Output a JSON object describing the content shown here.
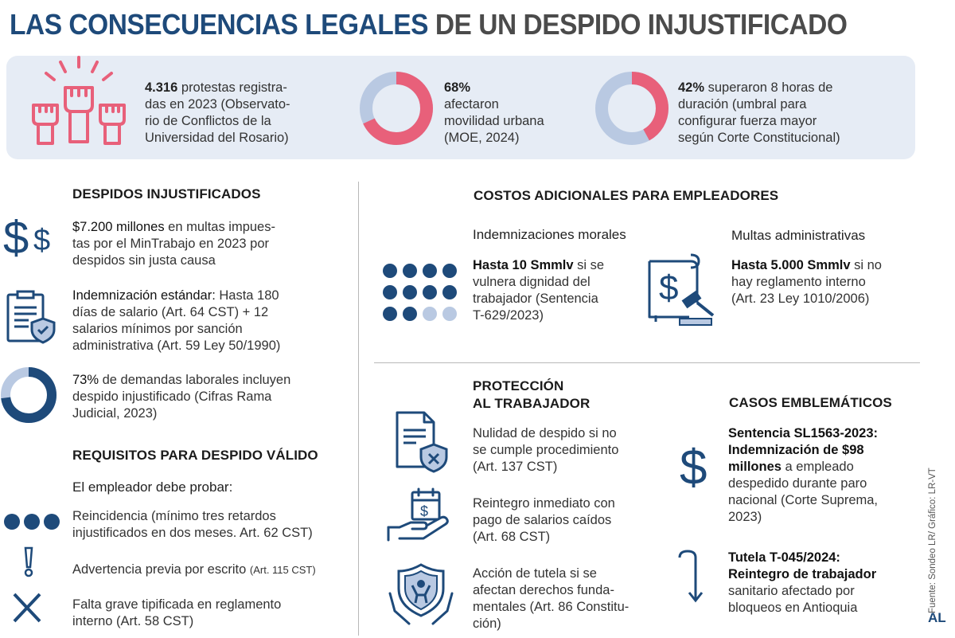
{
  "title": {
    "part_a": "LAS CONSECUENCIAS LEGALES",
    "part_b": "DE UN DESPIDO INJUSTIFICADO"
  },
  "colors": {
    "navy": "#1e4a7a",
    "red": "#e8607a",
    "light_blue": "#b9c9e2",
    "panel": "#e6ecf5"
  },
  "top_stats": [
    {
      "icon": "raised-fists-icon",
      "bold": "4.316",
      "lines": [
        "protestas registra-",
        "das en 2023 (Observato-",
        "rio de Conflictos de la",
        "Universidad del Rosario)"
      ]
    },
    {
      "icon": "donut-chart",
      "percent": 68,
      "bold": "68%",
      "lines": [
        "afectaron",
        "movilidad urbana",
        "(MOE, 2024)"
      ]
    },
    {
      "icon": "donut-chart",
      "percent": 42,
      "bold": "42%",
      "first_line_rest": "superaron 8 horas de",
      "lines": [
        "duración (umbral para",
        "configurar fuerza mayor",
        "según Corte Constitucional)"
      ]
    }
  ],
  "left": {
    "header": "DESPIDOS INJUSTIFICADOS",
    "item1": {
      "icon": "dollar-signs-icon",
      "bold": "$7.200 millones",
      "rest": "en multas impues-",
      "lines": [
        "tas por el MinTrabajo en 2023 por",
        "despidos sin justa causa"
      ]
    },
    "item2": {
      "icon": "clipboard-shield-icon",
      "bold": "Indemnización estándar:",
      "rest": "Hasta 180",
      "lines": [
        "días de salario (Art. 64 CST) + 12",
        "salarios mínimos por sanción",
        "administrativa (Art. 59 Ley 50/1990)"
      ]
    },
    "item3": {
      "icon": "donut-chart",
      "percent": 73,
      "bold": "73%",
      "rest": "de demandas laborales incluyen",
      "lines": [
        "despido injustificado (Cifras Rama",
        "Judicial, 2023)"
      ]
    },
    "req_header": "REQUISITOS PARA DESPIDO VÁLIDO",
    "req_sub": "El empleador debe probar:",
    "req1": {
      "icon": "three-dots-icon",
      "lines": [
        "Reincidencia (mínimo tres retardos",
        "injustificados en dos meses. Art. 62 CST)"
      ]
    },
    "req2": {
      "icon": "exclamation-icon",
      "text": "Advertencia previa por escrito",
      "small": "(Art. 115 CST)"
    },
    "req3": {
      "icon": "x-mark-icon",
      "lines": [
        "Falta grave tipificada en reglamento",
        "interno (Art. 58 CST)"
      ]
    }
  },
  "costs": {
    "header": "COSTOS ADICIONALES PARA EMPLEADORES",
    "moral": {
      "title": "Indemnizaciones morales",
      "icon": "dot-grid-icon",
      "bold": "Hasta 10 Smmlv",
      "rest": "si se",
      "lines": [
        "vulnera dignidad del",
        "trabajador (Sentencia",
        "T-629/2023)"
      ],
      "dots_filled": 10,
      "dots_total": 12
    },
    "fines": {
      "title": "Multas administrativas",
      "icon": "gavel-document-icon",
      "bold": "Hasta 5.000 Smmlv",
      "rest": "si no",
      "lines": [
        "hay reglamento interno",
        "(Art. 23 Ley 1010/2006)"
      ]
    }
  },
  "protection": {
    "header_lines": [
      "PROTECCIÓN",
      "AL TRABAJADOR"
    ],
    "item1": {
      "icon": "document-shield-x-icon",
      "lines": [
        "Nulidad de despido si no",
        "se cumple procedimiento",
        "(Art. 137 CST)"
      ]
    },
    "item2": {
      "icon": "hand-calendar-dollar-icon",
      "lines": [
        "Reintegro inmediato con",
        "pago de salarios caídos",
        "(Art. 68 CST)"
      ]
    },
    "item3": {
      "icon": "hands-shield-person-icon",
      "lines": [
        "Acción de tutela si se",
        "afectan derechos funda-",
        "mentales (Art. 86 Constitu-",
        "ción)"
      ]
    }
  },
  "cases": {
    "header": "CASOS EMBLEMÁTICOS",
    "case1": {
      "icon": "dollar-icon",
      "bold_lines": [
        "Sentencia SL1563-2023:",
        "Indemnización de $98"
      ],
      "bold_last": "millones",
      "rest": "a empleado",
      "lines": [
        "despedido durante paro",
        "nacional (Corte Suprema,",
        "2023)"
      ]
    },
    "case2": {
      "icon": "curved-arrow-down-icon",
      "bold_lines": [
        "Tutela T-045/2024:",
        "Reintegro de trabajador"
      ],
      "lines": [
        "sanitario afectado por",
        "bloqueos en Antioquia"
      ]
    }
  },
  "credit": "Fuente: Sondeo LR/ Gráfico: LR-VT",
  "logo": "AL"
}
